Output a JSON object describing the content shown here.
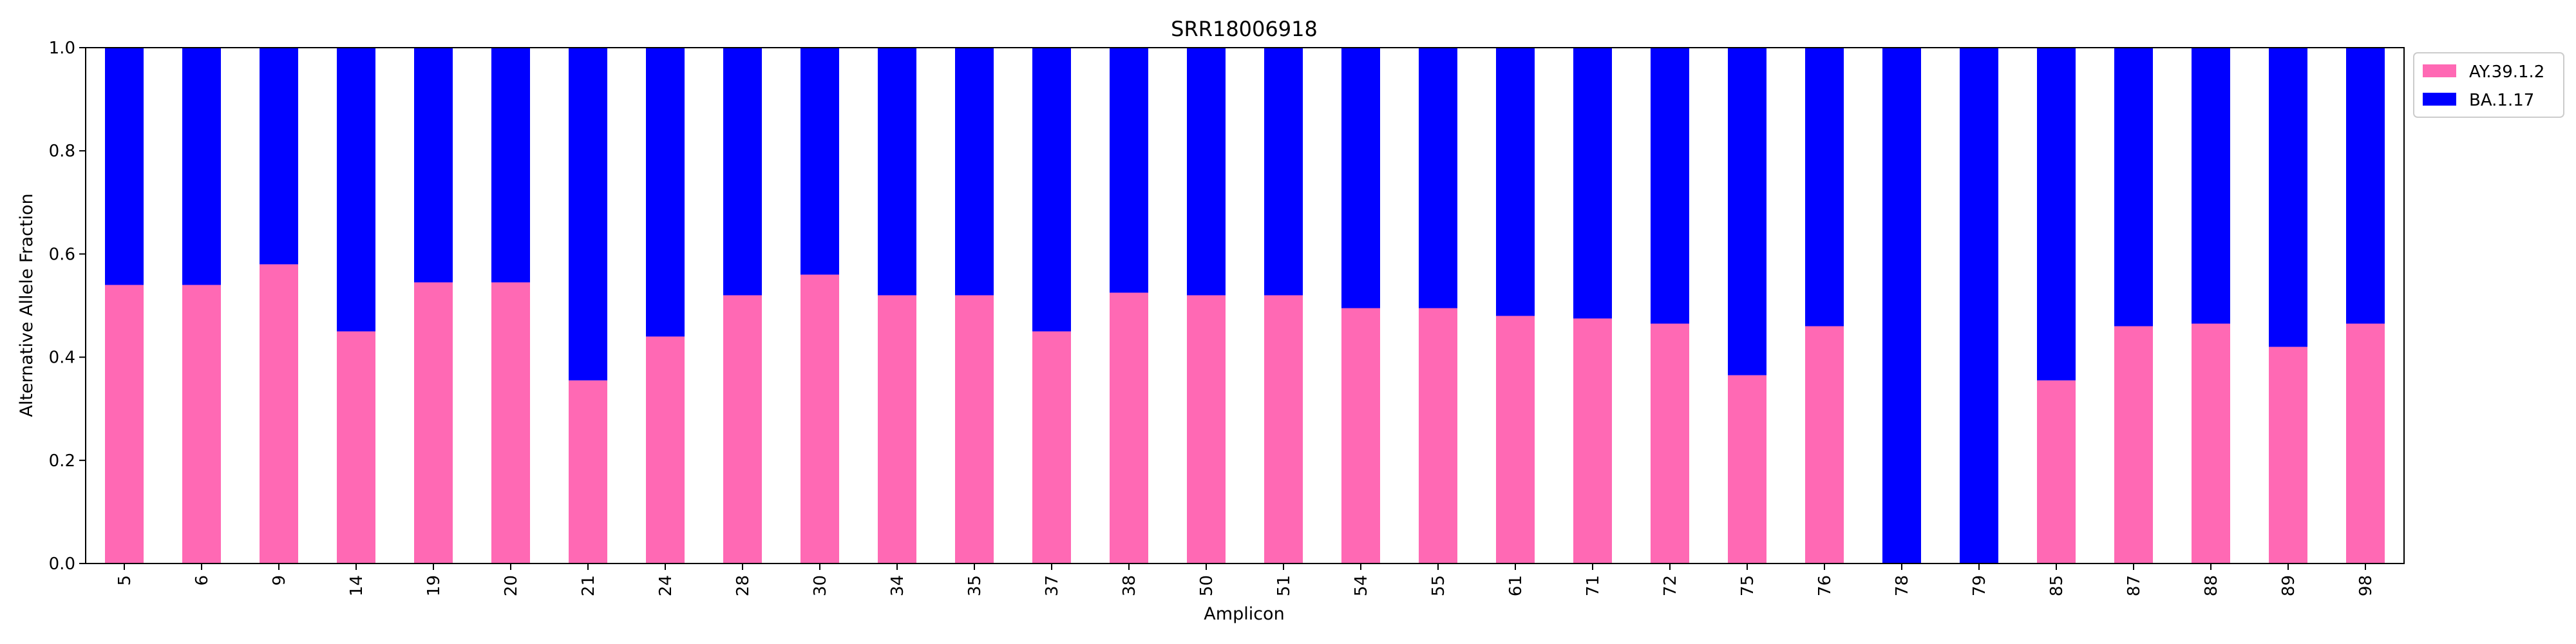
{
  "chart_data": {
    "type": "bar",
    "stacked": true,
    "title": "SRR18006918",
    "xlabel": "Amplicon",
    "ylabel": "Alternative Allele Fraction",
    "ylim": [
      0,
      1
    ],
    "yticks": [
      0.0,
      0.2,
      0.4,
      0.6,
      0.8,
      1.0
    ],
    "ytick_labels": [
      "0.0",
      "0.2",
      "0.4",
      "0.6",
      "0.8",
      "1.0"
    ],
    "legend_position": "outside-top-right",
    "categories": [
      "5",
      "6",
      "9",
      "14",
      "19",
      "20",
      "21",
      "24",
      "28",
      "30",
      "34",
      "35",
      "37",
      "38",
      "50",
      "51",
      "54",
      "55",
      "61",
      "71",
      "72",
      "75",
      "76",
      "78",
      "79",
      "85",
      "87",
      "88",
      "89",
      "98"
    ],
    "series": [
      {
        "name": "AY.39.1.2",
        "color": "#ff69b4",
        "values": [
          0.54,
          0.54,
          0.58,
          0.45,
          0.545,
          0.545,
          0.355,
          0.44,
          0.52,
          0.56,
          0.52,
          0.52,
          0.45,
          0.525,
          0.52,
          0.52,
          0.495,
          0.495,
          0.48,
          0.475,
          0.465,
          0.365,
          0.46,
          0.0,
          0.0,
          0.355,
          0.46,
          0.465,
          0.42,
          0.465
        ]
      },
      {
        "name": "BA.1.17",
        "color": "#0000ff",
        "values": [
          0.46,
          0.46,
          0.42,
          0.55,
          0.455,
          0.455,
          0.645,
          0.56,
          0.48,
          0.44,
          0.48,
          0.48,
          0.55,
          0.475,
          0.48,
          0.48,
          0.505,
          0.505,
          0.52,
          0.525,
          0.535,
          0.635,
          0.54,
          1.0,
          1.0,
          0.645,
          0.54,
          0.535,
          0.58,
          0.535
        ]
      }
    ]
  }
}
